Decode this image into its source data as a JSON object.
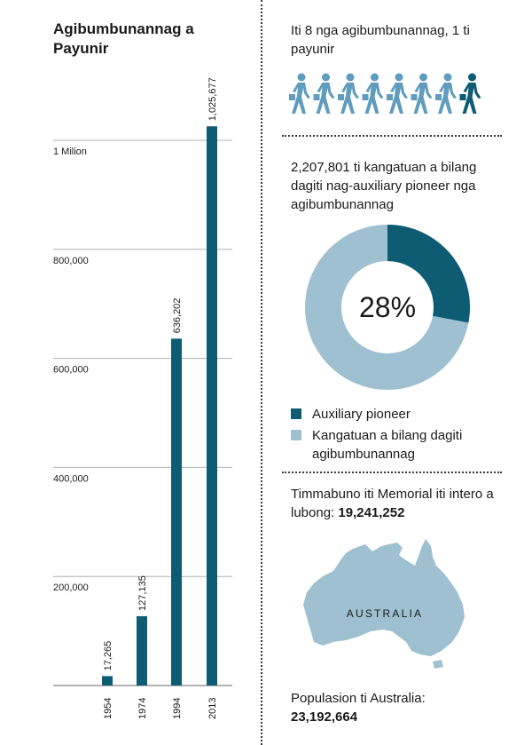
{
  "colors": {
    "bar": "#0d5c74",
    "dark_teal": "#0d5c74",
    "light_blue": "#9fc0d0",
    "icon_blue": "#5f9cbd",
    "grid": "#b0b0b0"
  },
  "chart_data": {
    "type": "bar",
    "title": "Agibumbunannag a Payunir",
    "categories": [
      "1954",
      "1974",
      "1994",
      "2013"
    ],
    "values": [
      17265,
      127135,
      636202,
      1025677
    ],
    "value_labels": [
      "17,265",
      "127,135",
      "636,202",
      "1,025,677"
    ],
    "ylim": [
      0,
      1000000
    ],
    "yticks": [
      200000,
      400000,
      600000,
      800000,
      1000000
    ],
    "ytick_labels": [
      "200,000",
      "400,000",
      "600,000",
      "800,000",
      "1 Milion"
    ],
    "grid": true
  },
  "ratio_panel": {
    "text": "Iti 8 nga agibumbunannag, 1 ti payunir",
    "total_icons": 8,
    "highlighted_icons": 1,
    "icon": "walking-person-icon"
  },
  "donut_panel": {
    "text": "2,207,801 ti kangatuan a bilang dagiti nag-auxiliary pioneer nga agibumbunannag",
    "percent_value": 28,
    "percent_label": "28%",
    "legend": [
      {
        "label": "Auxiliary pioneer",
        "color": "#0d5c74"
      },
      {
        "label": "Kangatuan a bilang dagiti agibumbunannag",
        "color": "#9fc0d0"
      }
    ]
  },
  "memorial_panel": {
    "text": "Timmabuno iti Memorial iti intero a lubong:",
    "value": "19,241,252"
  },
  "population_panel": {
    "map_label": "AUSTRALIA",
    "text": "Populasion ti Australia:",
    "value": "23,192,664"
  }
}
